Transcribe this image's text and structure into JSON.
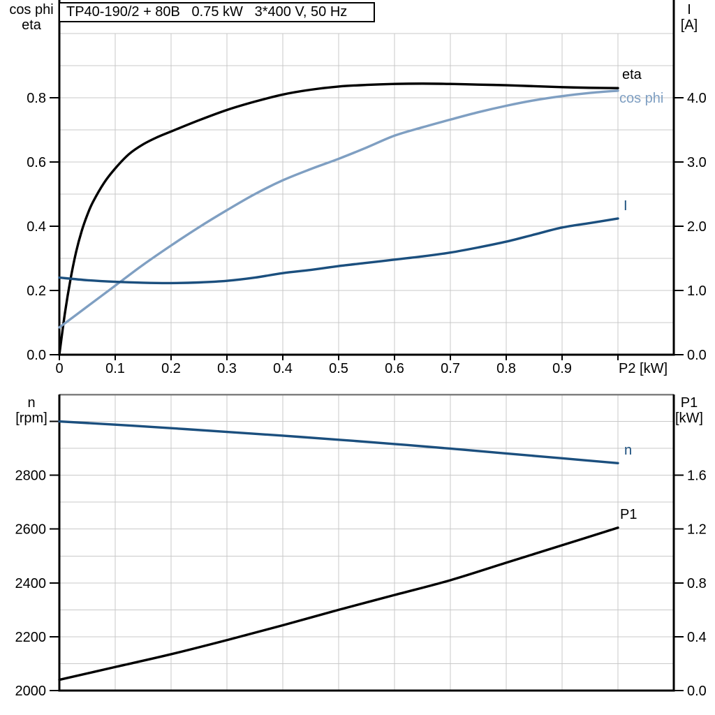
{
  "colors": {
    "black": "#000000",
    "dark_blue": "#1b4f7e",
    "light_blue": "#7f9fc2",
    "grid": "#c9c9c9",
    "frame": "#808080"
  },
  "chart_data": [
    {
      "name": "upper-motor-curves",
      "type": "line",
      "title": "TP40-190/2 + 80B   0.75 kW   3*400 V, 50 Hz",
      "legend_position": "end-of-curve-labels",
      "grid": true,
      "x_axis": {
        "label": "P2 [kW]",
        "min": 0,
        "max": 1.1,
        "grid_step": 0.1,
        "ticks": [
          0,
          0.1,
          0.2,
          0.3,
          0.4,
          0.5,
          0.6,
          0.7,
          0.8,
          0.9,
          1.0
        ],
        "tick_labels": [
          "0",
          "0.1",
          "0.2",
          "0.3",
          "0.4",
          "0.5",
          "0.6",
          "0.7",
          "0.8",
          "0.9",
          ""
        ]
      },
      "y_left": {
        "label_lines": [
          "cos phi",
          "eta"
        ],
        "min": 0,
        "max": 1.0,
        "grid_step": 0.1,
        "ticks": [
          0,
          0.2,
          0.4,
          0.6,
          0.8
        ],
        "tick_labels": [
          "0.0",
          "0.2",
          "0.4",
          "0.6",
          "0.8"
        ]
      },
      "y_right": {
        "label_lines": [
          "I",
          "[A]"
        ],
        "min": 0,
        "max": 5.0,
        "ticks": [
          0,
          1,
          2,
          3,
          4
        ],
        "tick_labels": [
          "0.0",
          "1.0",
          "2.0",
          "3.0",
          "4.0"
        ]
      },
      "series": [
        {
          "name": "eta",
          "axis": "left",
          "color": "black",
          "x": [
            0,
            0.01,
            0.02,
            0.03,
            0.04,
            0.05,
            0.06,
            0.08,
            0.1,
            0.125,
            0.15,
            0.175,
            0.2,
            0.25,
            0.3,
            0.35,
            0.4,
            0.45,
            0.5,
            0.55,
            0.6,
            0.65,
            0.7,
            0.75,
            0.8,
            0.85,
            0.9,
            0.95,
            1.0
          ],
          "y": [
            0,
            0.13,
            0.235,
            0.32,
            0.385,
            0.435,
            0.475,
            0.535,
            0.58,
            0.625,
            0.655,
            0.677,
            0.695,
            0.73,
            0.762,
            0.788,
            0.81,
            0.825,
            0.835,
            0.84,
            0.843,
            0.844,
            0.843,
            0.841,
            0.839,
            0.836,
            0.833,
            0.831,
            0.83
          ]
        },
        {
          "name": "cos phi",
          "axis": "left",
          "color": "light_blue",
          "x": [
            0,
            0.05,
            0.1,
            0.15,
            0.2,
            0.25,
            0.3,
            0.35,
            0.4,
            0.45,
            0.5,
            0.55,
            0.6,
            0.65,
            0.7,
            0.75,
            0.8,
            0.85,
            0.9,
            0.95,
            1.0
          ],
          "y": [
            0.085,
            0.15,
            0.215,
            0.28,
            0.34,
            0.397,
            0.45,
            0.5,
            0.543,
            0.578,
            0.61,
            0.645,
            0.682,
            0.708,
            0.732,
            0.755,
            0.775,
            0.792,
            0.805,
            0.815,
            0.822
          ]
        },
        {
          "name": "I",
          "axis": "right",
          "color": "dark_blue",
          "x": [
            0,
            0.05,
            0.1,
            0.15,
            0.2,
            0.25,
            0.3,
            0.35,
            0.4,
            0.45,
            0.5,
            0.55,
            0.6,
            0.65,
            0.7,
            0.75,
            0.8,
            0.85,
            0.9,
            0.95,
            1.0
          ],
          "y": [
            1.2,
            1.16,
            1.135,
            1.12,
            1.115,
            1.125,
            1.15,
            1.2,
            1.27,
            1.32,
            1.38,
            1.43,
            1.48,
            1.53,
            1.59,
            1.67,
            1.76,
            1.87,
            1.98,
            2.05,
            2.12
          ]
        }
      ]
    },
    {
      "name": "lower-speed-power-curves",
      "type": "line",
      "title": "",
      "grid": true,
      "x_axis": {
        "label": "",
        "min": 0,
        "max": 1.1,
        "grid_step": 0.1,
        "ticks": [],
        "tick_labels": []
      },
      "y_left": {
        "label_lines": [
          "n",
          "[rpm]"
        ],
        "min": 2000,
        "max": 3100,
        "grid_step": 100,
        "ticks": [
          2000,
          2200,
          2400,
          2600,
          2800,
          3000
        ],
        "tick_labels": [
          "2000",
          "2200",
          "2400",
          "2600",
          "2800",
          ""
        ]
      },
      "y_right": {
        "label_lines": [
          "P1",
          "[kW]"
        ],
        "min": 0,
        "max": 2.2,
        "ticks": [
          0,
          0.4,
          0.8,
          1.2,
          1.6
        ],
        "tick_labels": [
          "0.0",
          "0.4",
          "0.8",
          "1.2",
          "1.6"
        ]
      },
      "series": [
        {
          "name": "n",
          "axis": "left",
          "color": "dark_blue",
          "x": [
            0,
            0.1,
            0.2,
            0.3,
            0.4,
            0.5,
            0.6,
            0.7,
            0.8,
            0.9,
            1.0
          ],
          "y": [
            3000,
            2988,
            2975,
            2961,
            2947,
            2932,
            2916,
            2899,
            2881,
            2863,
            2845
          ]
        },
        {
          "name": "P1",
          "axis": "right",
          "color": "black",
          "x": [
            0,
            0.1,
            0.2,
            0.3,
            0.4,
            0.5,
            0.6,
            0.7,
            0.8,
            0.9,
            1.0
          ],
          "y": [
            0.08,
            0.175,
            0.27,
            0.375,
            0.485,
            0.6,
            0.71,
            0.82,
            0.95,
            1.08,
            1.21
          ]
        }
      ]
    }
  ]
}
